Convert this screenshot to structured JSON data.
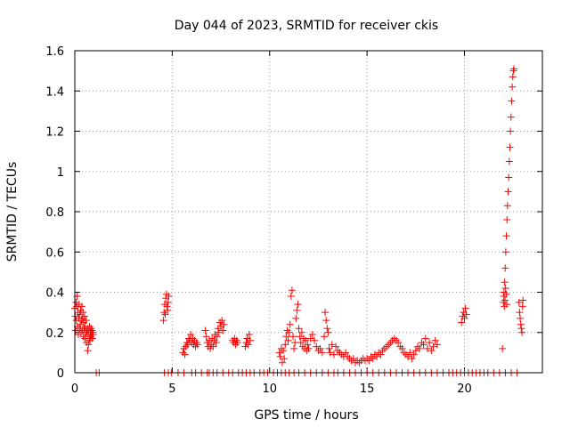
{
  "chart_data": {
    "type": "scatter",
    "title": "Day 044 of 2023, SRMTID for receiver ckis",
    "xlabel": "GPS time / hours",
    "ylabel": "SRMTID / TECUs",
    "xlim": [
      0,
      24
    ],
    "ylim": [
      0,
      1.6
    ],
    "xticks": [
      0,
      5,
      10,
      15,
      20
    ],
    "yticks": [
      0,
      0.2,
      0.4,
      0.6,
      0.8,
      1,
      1.2,
      1.4,
      1.6
    ],
    "xtick_labels": [
      "0",
      "5",
      "10",
      "15",
      "20"
    ],
    "ytick_labels": [
      "0",
      "0.2",
      "0.4",
      "0.6",
      "0.8",
      "1",
      "1.2",
      "1.4",
      "1.6"
    ],
    "grid": true,
    "marker": "+",
    "color": "#ff0000",
    "series": [
      {
        "name": "SRMTID",
        "points": [
          [
            0.0,
            0.32
          ],
          [
            0.02,
            0.28
          ],
          [
            0.04,
            0.21
          ],
          [
            0.06,
            0.35
          ],
          [
            0.08,
            0.26
          ],
          [
            0.1,
            0.33
          ],
          [
            0.12,
            0.38
          ],
          [
            0.14,
            0.23
          ],
          [
            0.16,
            0.3
          ],
          [
            0.18,
            0.19
          ],
          [
            0.2,
            0.27
          ],
          [
            0.22,
            0.34
          ],
          [
            0.24,
            0.22
          ],
          [
            0.26,
            0.29
          ],
          [
            0.28,
            0.24
          ],
          [
            0.3,
            0.31
          ],
          [
            0.32,
            0.2
          ],
          [
            0.34,
            0.26
          ],
          [
            0.36,
            0.33
          ],
          [
            0.38,
            0.21
          ],
          [
            0.4,
            0.27
          ],
          [
            0.42,
            0.3
          ],
          [
            0.44,
            0.18
          ],
          [
            0.46,
            0.25
          ],
          [
            0.48,
            0.22
          ],
          [
            0.5,
            0.28
          ],
          [
            0.52,
            0.17
          ],
          [
            0.54,
            0.23
          ],
          [
            0.56,
            0.2
          ],
          [
            0.58,
            0.26
          ],
          [
            0.6,
            0.15
          ],
          [
            0.62,
            0.21
          ],
          [
            0.64,
            0.19
          ],
          [
            0.66,
            0.11
          ],
          [
            0.68,
            0.22
          ],
          [
            0.7,
            0.14
          ],
          [
            0.72,
            0.2
          ],
          [
            0.74,
            0.17
          ],
          [
            0.76,
            0.23
          ],
          [
            0.78,
            0.16
          ],
          [
            0.8,
            0.2
          ],
          [
            0.82,
            0.18
          ],
          [
            0.84,
            0.22
          ],
          [
            0.86,
            0.19
          ],
          [
            0.88,
            0.21
          ],
          [
            0.9,
            0.17
          ],
          [
            0.92,
            0.2
          ],
          [
            0.94,
            0.19
          ],
          [
            1.1,
            0.0
          ],
          [
            1.25,
            0.0
          ],
          [
            4.55,
            0.26
          ],
          [
            4.58,
            0.3
          ],
          [
            4.61,
            0.34
          ],
          [
            4.64,
            0.29
          ],
          [
            4.67,
            0.37
          ],
          [
            4.7,
            0.39
          ],
          [
            4.73,
            0.33
          ],
          [
            4.76,
            0.31
          ],
          [
            4.79,
            0.35
          ],
          [
            4.82,
            0.38
          ],
          [
            5.55,
            0.1
          ],
          [
            5.6,
            0.12
          ],
          [
            5.65,
            0.09
          ],
          [
            5.7,
            0.13
          ],
          [
            5.75,
            0.15
          ],
          [
            5.8,
            0.14
          ],
          [
            5.85,
            0.17
          ],
          [
            5.9,
            0.16
          ],
          [
            5.95,
            0.19
          ],
          [
            6.0,
            0.15
          ],
          [
            6.05,
            0.17
          ],
          [
            6.1,
            0.14
          ],
          [
            6.15,
            0.16
          ],
          [
            6.2,
            0.13
          ],
          [
            6.25,
            0.15
          ],
          [
            6.3,
            0.14
          ],
          [
            6.7,
            0.21
          ],
          [
            6.75,
            0.18
          ],
          [
            6.8,
            0.15
          ],
          [
            6.85,
            0.13
          ],
          [
            6.9,
            0.16
          ],
          [
            6.95,
            0.12
          ],
          [
            7.0,
            0.14
          ],
          [
            7.05,
            0.17
          ],
          [
            7.1,
            0.13
          ],
          [
            7.15,
            0.16
          ],
          [
            7.2,
            0.19
          ],
          [
            7.25,
            0.15
          ],
          [
            7.3,
            0.18
          ],
          [
            7.35,
            0.22
          ],
          [
            7.4,
            0.2
          ],
          [
            7.45,
            0.25
          ],
          [
            7.5,
            0.23
          ],
          [
            7.55,
            0.26
          ],
          [
            7.6,
            0.21
          ],
          [
            7.65,
            0.24
          ],
          [
            8.1,
            0.16
          ],
          [
            8.15,
            0.15
          ],
          [
            8.2,
            0.17
          ],
          [
            8.25,
            0.14
          ],
          [
            8.3,
            0.16
          ],
          [
            8.35,
            0.15
          ],
          [
            8.75,
            0.13
          ],
          [
            8.8,
            0.15
          ],
          [
            8.85,
            0.17
          ],
          [
            8.9,
            0.14
          ],
          [
            8.95,
            0.19
          ],
          [
            9.0,
            0.16
          ],
          [
            10.5,
            0.1
          ],
          [
            10.55,
            0.08
          ],
          [
            10.6,
            0.12
          ],
          [
            10.65,
            0.05
          ],
          [
            10.7,
            0.11
          ],
          [
            10.75,
            0.07
          ],
          [
            10.8,
            0.14
          ],
          [
            10.85,
            0.18
          ],
          [
            10.9,
            0.21
          ],
          [
            10.95,
            0.16
          ],
          [
            11.0,
            0.2
          ],
          [
            11.05,
            0.24
          ],
          [
            11.1,
            0.38
          ],
          [
            11.15,
            0.41
          ],
          [
            11.2,
            0.18
          ],
          [
            11.25,
            0.12
          ],
          [
            11.3,
            0.15
          ],
          [
            11.35,
            0.27
          ],
          [
            11.4,
            0.31
          ],
          [
            11.45,
            0.34
          ],
          [
            11.5,
            0.22
          ],
          [
            11.55,
            0.18
          ],
          [
            11.6,
            0.15
          ],
          [
            11.65,
            0.2
          ],
          [
            11.7,
            0.13
          ],
          [
            11.75,
            0.17
          ],
          [
            11.8,
            0.12
          ],
          [
            11.85,
            0.16
          ],
          [
            11.9,
            0.11
          ],
          [
            11.95,
            0.14
          ],
          [
            12.0,
            0.12
          ],
          [
            12.1,
            0.17
          ],
          [
            12.2,
            0.19
          ],
          [
            12.3,
            0.16
          ],
          [
            12.4,
            0.13
          ],
          [
            12.5,
            0.11
          ],
          [
            12.6,
            0.12
          ],
          [
            12.7,
            0.1
          ],
          [
            12.8,
            0.18
          ],
          [
            12.85,
            0.3
          ],
          [
            12.9,
            0.26
          ],
          [
            12.95,
            0.22
          ],
          [
            13.0,
            0.2
          ],
          [
            13.05,
            0.12
          ],
          [
            13.1,
            0.1
          ],
          [
            13.2,
            0.14
          ],
          [
            13.3,
            0.09
          ],
          [
            13.4,
            0.13
          ],
          [
            13.5,
            0.11
          ],
          [
            13.6,
            0.1
          ],
          [
            13.7,
            0.09
          ],
          [
            13.8,
            0.08
          ],
          [
            13.9,
            0.1
          ],
          [
            14.0,
            0.08
          ],
          [
            14.1,
            0.07
          ],
          [
            14.2,
            0.06
          ],
          [
            14.3,
            0.07
          ],
          [
            14.4,
            0.05
          ],
          [
            14.5,
            0.06
          ],
          [
            14.6,
            0.05
          ],
          [
            14.7,
            0.06
          ],
          [
            14.8,
            0.07
          ],
          [
            14.9,
            0.06
          ],
          [
            15.0,
            0.07
          ],
          [
            15.1,
            0.06
          ],
          [
            15.2,
            0.08
          ],
          [
            15.3,
            0.07
          ],
          [
            15.4,
            0.09
          ],
          [
            15.5,
            0.08
          ],
          [
            15.6,
            0.1
          ],
          [
            15.7,
            0.09
          ],
          [
            15.8,
            0.11
          ],
          [
            15.9,
            0.12
          ],
          [
            16.0,
            0.13
          ],
          [
            16.1,
            0.14
          ],
          [
            16.2,
            0.15
          ],
          [
            16.3,
            0.16
          ],
          [
            16.4,
            0.17
          ],
          [
            16.5,
            0.16
          ],
          [
            16.6,
            0.15
          ],
          [
            16.7,
            0.13
          ],
          [
            16.8,
            0.12
          ],
          [
            16.9,
            0.1
          ],
          [
            17.0,
            0.09
          ],
          [
            17.1,
            0.08
          ],
          [
            17.2,
            0.1
          ],
          [
            17.3,
            0.07
          ],
          [
            17.4,
            0.09
          ],
          [
            17.5,
            0.11
          ],
          [
            17.6,
            0.13
          ],
          [
            17.7,
            0.12
          ],
          [
            17.8,
            0.15
          ],
          [
            17.9,
            0.14
          ],
          [
            18.0,
            0.17
          ],
          [
            18.1,
            0.12
          ],
          [
            18.2,
            0.15
          ],
          [
            18.3,
            0.11
          ],
          [
            18.4,
            0.13
          ],
          [
            18.5,
            0.16
          ],
          [
            18.6,
            0.14
          ],
          [
            19.85,
            0.25
          ],
          [
            19.9,
            0.28
          ],
          [
            19.95,
            0.3
          ],
          [
            20.0,
            0.27
          ],
          [
            20.05,
            0.32
          ],
          [
            20.1,
            0.29
          ],
          [
            21.95,
            0.12
          ],
          [
            22.0,
            0.35
          ],
          [
            22.03,
            0.4
          ],
          [
            22.06,
            0.45
          ],
          [
            22.09,
            0.52
          ],
          [
            22.12,
            0.6
          ],
          [
            22.15,
            0.68
          ],
          [
            22.18,
            0.76
          ],
          [
            22.21,
            0.83
          ],
          [
            22.24,
            0.9
          ],
          [
            22.27,
            0.97
          ],
          [
            22.3,
            1.05
          ],
          [
            22.33,
            1.12
          ],
          [
            22.36,
            1.2
          ],
          [
            22.39,
            1.27
          ],
          [
            22.42,
            1.35
          ],
          [
            22.45,
            1.42
          ],
          [
            22.48,
            1.47
          ],
          [
            22.51,
            1.5
          ],
          [
            22.54,
            1.51
          ],
          [
            22.02,
            0.38
          ],
          [
            22.05,
            0.33
          ],
          [
            22.08,
            0.36
          ],
          [
            22.11,
            0.42
          ],
          [
            22.14,
            0.39
          ],
          [
            22.17,
            0.34
          ],
          [
            22.8,
            0.35
          ],
          [
            22.83,
            0.3
          ],
          [
            22.86,
            0.27
          ],
          [
            22.89,
            0.24
          ],
          [
            22.92,
            0.22
          ],
          [
            22.95,
            0.2
          ],
          [
            22.98,
            0.33
          ],
          [
            23.0,
            0.36
          ]
        ],
        "zero_points": [
          4.6,
          4.8,
          4.95,
          5.3,
          5.6,
          6.0,
          6.2,
          6.5,
          6.8,
          6.9,
          7.1,
          7.3,
          7.6,
          7.9,
          8.1,
          8.4,
          8.6,
          8.8,
          9.0,
          9.2,
          9.5,
          9.7,
          9.9,
          10.2,
          10.4,
          10.6,
          10.8,
          11.0,
          11.25,
          11.5,
          11.8,
          12.1,
          12.4,
          12.7,
          13.0,
          13.3,
          13.5,
          13.8,
          14.1,
          14.4,
          14.7,
          15.0,
          15.3,
          15.6,
          15.9,
          16.2,
          16.5,
          16.8,
          17.1,
          17.4,
          17.7,
          18.0,
          18.3,
          18.6,
          18.9,
          19.2,
          19.4,
          19.6,
          19.8,
          20.0,
          20.2,
          20.4,
          20.6,
          20.8,
          21.0,
          21.2,
          21.5,
          21.8,
          22.1,
          22.4,
          22.7
        ]
      }
    ]
  }
}
